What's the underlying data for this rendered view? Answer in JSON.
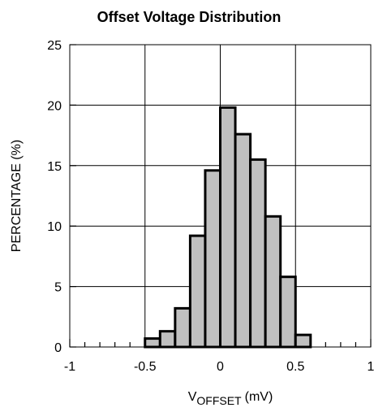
{
  "chart_data": {
    "type": "bar",
    "title": "Offset Voltage Distribution",
    "xlabel_main": "V",
    "xlabel_sub": "OFFSET",
    "xlabel_unit": "(mV)",
    "ylabel": "PERCENTAGE (%)",
    "xlim": [
      -1,
      1
    ],
    "ylim": [
      0,
      25
    ],
    "x_tick_labels": [
      "-1",
      "-0.5",
      "0",
      "0.5",
      "1"
    ],
    "x_tick_values": [
      -1,
      -0.5,
      0,
      0.5,
      1
    ],
    "y_tick_labels": [
      "0",
      "5",
      "10",
      "15",
      "20",
      "25"
    ],
    "y_tick_values": [
      0,
      5,
      10,
      15,
      20,
      25
    ],
    "grid": true,
    "bin_width": 0.1,
    "bins": [
      {
        "start": -0.5,
        "value": 0.7
      },
      {
        "start": -0.4,
        "value": 1.3
      },
      {
        "start": -0.3,
        "value": 3.2
      },
      {
        "start": -0.2,
        "value": 9.2
      },
      {
        "start": -0.1,
        "value": 14.6
      },
      {
        "start": 0.0,
        "value": 19.8
      },
      {
        "start": 0.1,
        "value": 17.6
      },
      {
        "start": 0.2,
        "value": 15.5
      },
      {
        "start": 0.3,
        "value": 10.8
      },
      {
        "start": 0.4,
        "value": 5.8
      },
      {
        "start": 0.5,
        "value": 1.0
      }
    ]
  },
  "colors": {
    "bar_fill": "#c0c0c0",
    "bar_stroke": "#000000",
    "grid": "#000000",
    "frame": "#000000"
  }
}
